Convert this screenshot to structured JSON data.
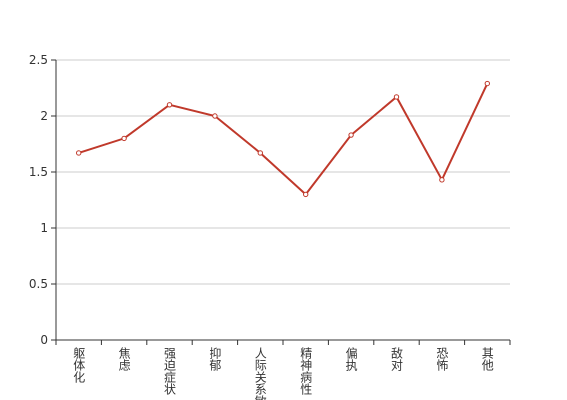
{
  "chart_data": {
    "type": "line",
    "categories": [
      "躯体化",
      "焦虑",
      "强迫症状",
      "抑郁",
      "人际关系敏感",
      "精神病性",
      "偏执",
      "敌对",
      "恐怖",
      "其他"
    ],
    "series": [
      {
        "color": "#c0392b",
        "values": [
          1.67,
          1.8,
          2.1,
          2.0,
          1.67,
          1.3,
          1.83,
          2.17,
          1.43,
          2.29
        ]
      }
    ],
    "ylim": [
      0,
      2.5
    ],
    "yticks": [
      0,
      0.5,
      1,
      1.5,
      2,
      2.5
    ],
    "grid": true
  }
}
